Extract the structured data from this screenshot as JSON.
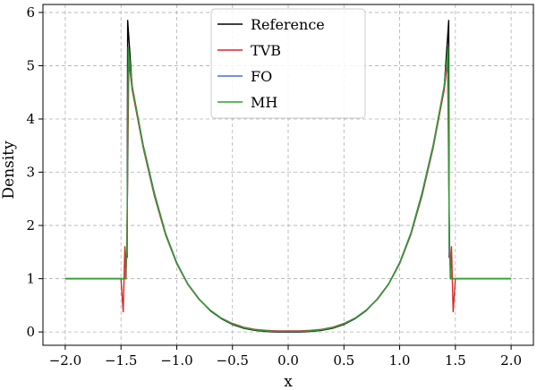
{
  "chart_data": {
    "type": "line",
    "title": "",
    "xlabel": "x",
    "ylabel": "Density",
    "xlim": [
      -2.2,
      2.2
    ],
    "ylim": [
      -0.25,
      6.15
    ],
    "xticks": [
      -2.0,
      -1.5,
      -1.0,
      -0.5,
      0.0,
      0.5,
      1.0,
      1.5,
      2.0
    ],
    "xtick_labels": [
      "−2.0",
      "−1.5",
      "−1.0",
      "−0.5",
      "0.0",
      "0.5",
      "1.0",
      "1.5",
      "2.0"
    ],
    "yticks": [
      0,
      1,
      2,
      3,
      4,
      5,
      6
    ],
    "ytick_labels": [
      "0",
      "1",
      "2",
      "3",
      "4",
      "5",
      "6"
    ],
    "grid": true,
    "legend_position": "top-center",
    "series": [
      {
        "name": "Reference",
        "color": "#000000",
        "points": [
          [
            -2.0,
            1.0
          ],
          [
            -1.455,
            1.0
          ],
          [
            -1.455,
            1.4
          ],
          [
            -1.445,
            1.4
          ],
          [
            -1.44,
            5.85
          ],
          [
            -1.4,
            4.6
          ],
          [
            -1.3,
            3.5
          ],
          [
            -1.2,
            2.6
          ],
          [
            -1.1,
            1.85
          ],
          [
            -1.0,
            1.3
          ],
          [
            -0.9,
            0.9
          ],
          [
            -0.8,
            0.62
          ],
          [
            -0.7,
            0.4
          ],
          [
            -0.6,
            0.25
          ],
          [
            -0.5,
            0.14
          ],
          [
            -0.4,
            0.07
          ],
          [
            -0.3,
            0.03
          ],
          [
            -0.2,
            0.01
          ],
          [
            -0.1,
            0.0
          ],
          [
            0.0,
            0.0
          ],
          [
            0.1,
            0.0
          ],
          [
            0.2,
            0.01
          ],
          [
            0.3,
            0.03
          ],
          [
            0.4,
            0.07
          ],
          [
            0.5,
            0.14
          ],
          [
            0.6,
            0.25
          ],
          [
            0.7,
            0.4
          ],
          [
            0.8,
            0.62
          ],
          [
            0.9,
            0.9
          ],
          [
            1.0,
            1.3
          ],
          [
            1.1,
            1.85
          ],
          [
            1.2,
            2.6
          ],
          [
            1.3,
            3.5
          ],
          [
            1.4,
            4.6
          ],
          [
            1.44,
            5.85
          ],
          [
            1.445,
            1.4
          ],
          [
            1.455,
            1.4
          ],
          [
            1.455,
            1.0
          ],
          [
            2.0,
            1.0
          ]
        ]
      },
      {
        "name": "TVB",
        "color": "#d62728",
        "points": [
          [
            -2.0,
            1.0
          ],
          [
            -1.5,
            1.0
          ],
          [
            -1.48,
            0.38
          ],
          [
            -1.465,
            1.6
          ],
          [
            -1.455,
            1.0
          ],
          [
            -1.45,
            1.4
          ],
          [
            -1.44,
            2.9
          ],
          [
            -1.43,
            5.1
          ],
          [
            -1.4,
            4.55
          ],
          [
            -1.3,
            3.45
          ],
          [
            -1.2,
            2.55
          ],
          [
            -1.1,
            1.82
          ],
          [
            -1.0,
            1.28
          ],
          [
            -0.9,
            0.89
          ],
          [
            -0.8,
            0.61
          ],
          [
            -0.7,
            0.41
          ],
          [
            -0.6,
            0.26
          ],
          [
            -0.5,
            0.16
          ],
          [
            -0.4,
            0.09
          ],
          [
            -0.3,
            0.05
          ],
          [
            -0.2,
            0.03
          ],
          [
            -0.1,
            0.02
          ],
          [
            0.0,
            0.02
          ],
          [
            0.1,
            0.02
          ],
          [
            0.2,
            0.03
          ],
          [
            0.3,
            0.05
          ],
          [
            0.4,
            0.09
          ],
          [
            0.5,
            0.16
          ],
          [
            0.6,
            0.26
          ],
          [
            0.7,
            0.41
          ],
          [
            0.8,
            0.61
          ],
          [
            0.9,
            0.89
          ],
          [
            1.0,
            1.28
          ],
          [
            1.1,
            1.82
          ],
          [
            1.2,
            2.55
          ],
          [
            1.3,
            3.45
          ],
          [
            1.4,
            4.55
          ],
          [
            1.43,
            5.1
          ],
          [
            1.44,
            2.9
          ],
          [
            1.45,
            1.4
          ],
          [
            1.455,
            1.0
          ],
          [
            1.465,
            1.6
          ],
          [
            1.48,
            0.38
          ],
          [
            1.5,
            1.0
          ],
          [
            2.0,
            1.0
          ]
        ]
      },
      {
        "name": "FO",
        "color": "#4a6fdb",
        "points": [
          [
            -2.0,
            1.0
          ],
          [
            -1.46,
            1.0
          ],
          [
            -1.445,
            1.6
          ],
          [
            -1.435,
            5.3
          ],
          [
            -1.4,
            4.62
          ],
          [
            -1.3,
            3.48
          ],
          [
            -1.2,
            2.58
          ],
          [
            -1.1,
            1.84
          ],
          [
            -1.0,
            1.29
          ],
          [
            -0.9,
            0.9
          ],
          [
            -0.8,
            0.62
          ],
          [
            -0.7,
            0.41
          ],
          [
            -0.6,
            0.26
          ],
          [
            -0.5,
            0.15
          ],
          [
            -0.4,
            0.08
          ],
          [
            -0.3,
            0.04
          ],
          [
            -0.2,
            0.02
          ],
          [
            -0.1,
            0.01
          ],
          [
            0.0,
            0.01
          ],
          [
            0.1,
            0.01
          ],
          [
            0.2,
            0.02
          ],
          [
            0.3,
            0.04
          ],
          [
            0.4,
            0.08
          ],
          [
            0.5,
            0.15
          ],
          [
            0.6,
            0.26
          ],
          [
            0.7,
            0.41
          ],
          [
            0.8,
            0.62
          ],
          [
            0.9,
            0.9
          ],
          [
            1.0,
            1.29
          ],
          [
            1.1,
            1.84
          ],
          [
            1.2,
            2.58
          ],
          [
            1.3,
            3.48
          ],
          [
            1.4,
            4.62
          ],
          [
            1.435,
            5.3
          ],
          [
            1.445,
            1.6
          ],
          [
            1.46,
            1.0
          ],
          [
            2.0,
            1.0
          ]
        ]
      },
      {
        "name": "MH",
        "color": "#2ca02c",
        "points": [
          [
            -2.0,
            1.0
          ],
          [
            -1.46,
            1.0
          ],
          [
            -1.445,
            1.7
          ],
          [
            -1.435,
            5.35
          ],
          [
            -1.4,
            4.63
          ],
          [
            -1.3,
            3.49
          ],
          [
            -1.2,
            2.59
          ],
          [
            -1.1,
            1.84
          ],
          [
            -1.0,
            1.29
          ],
          [
            -0.9,
            0.9
          ],
          [
            -0.8,
            0.62
          ],
          [
            -0.7,
            0.41
          ],
          [
            -0.6,
            0.26
          ],
          [
            -0.5,
            0.15
          ],
          [
            -0.4,
            0.08
          ],
          [
            -0.3,
            0.04
          ],
          [
            -0.2,
            0.02
          ],
          [
            -0.1,
            0.01
          ],
          [
            0.0,
            0.01
          ],
          [
            0.1,
            0.01
          ],
          [
            0.2,
            0.02
          ],
          [
            0.3,
            0.04
          ],
          [
            0.4,
            0.08
          ],
          [
            0.5,
            0.15
          ],
          [
            0.6,
            0.26
          ],
          [
            0.7,
            0.41
          ],
          [
            0.8,
            0.62
          ],
          [
            0.9,
            0.9
          ],
          [
            1.0,
            1.29
          ],
          [
            1.1,
            1.84
          ],
          [
            1.2,
            2.59
          ],
          [
            1.3,
            3.49
          ],
          [
            1.4,
            4.63
          ],
          [
            1.435,
            5.35
          ],
          [
            1.445,
            1.7
          ],
          [
            1.46,
            1.0
          ],
          [
            2.0,
            1.0
          ]
        ]
      }
    ]
  }
}
